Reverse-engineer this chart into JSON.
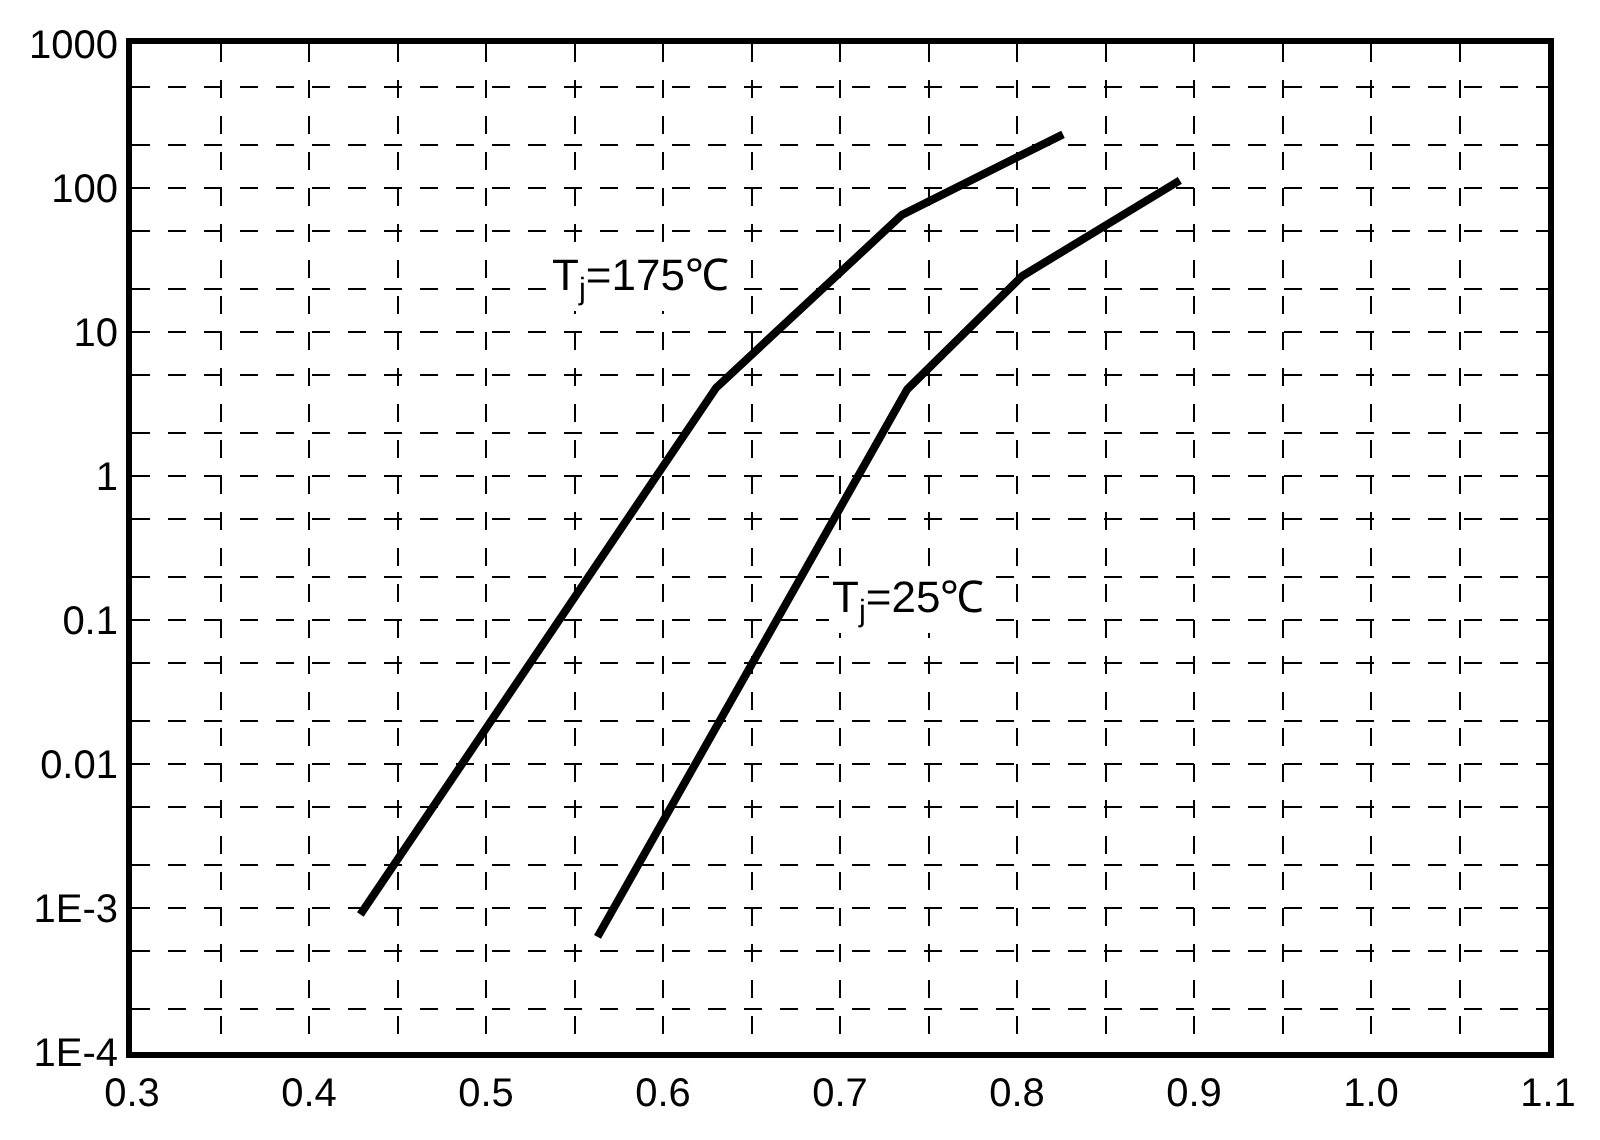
{
  "chart_data": {
    "type": "line",
    "series": [
      {
        "name": "T$_{j}$=175℃",
        "color": "#000000",
        "x": [
          0.429,
          0.63,
          0.735,
          0.826
        ],
        "values": [
          0.0009,
          4.1,
          65,
          236
        ]
      },
      {
        "name": "T$_{j}$=25℃",
        "color": "#000000",
        "x": [
          0.563,
          0.738,
          0.803,
          0.892
        ],
        "values": [
          0.00063,
          4,
          24.5,
          113
        ]
      }
    ],
    "log": "y",
    "xlim": [
      0.3,
      1.1
    ],
    "xticks": [
      0.3,
      0.4,
      0.5,
      0.6,
      0.7,
      0.8,
      0.9,
      {
        "value": 1.0,
        "label": "1.0"
      },
      1.1
    ],
    "ylim": [
      0.0001,
      1000
    ],
    "yticks": [
      {
        "value": 0.0001,
        "label": "1E-4"
      },
      {
        "value": 0.001,
        "label": "1E-3"
      },
      0.01,
      0.1,
      1,
      10,
      100,
      1000
    ],
    "grid": true,
    "legend": false,
    "marker": "none",
    "line_style": "solid"
  }
}
